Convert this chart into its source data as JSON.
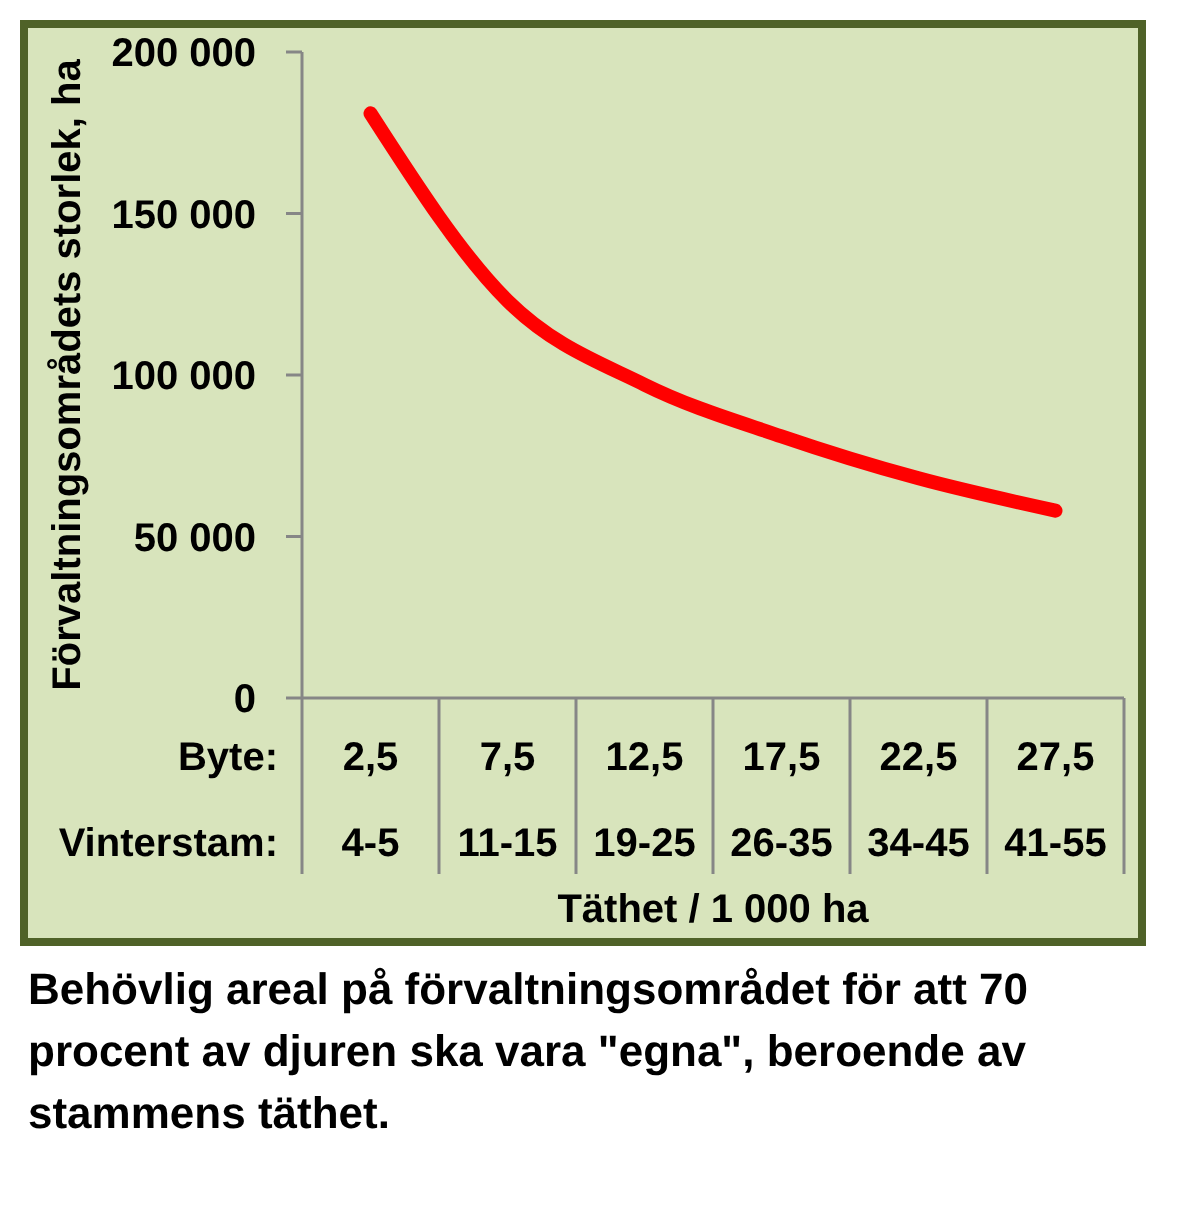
{
  "chart_data": {
    "type": "line",
    "xlabel": "Täthet / 1 000 ha",
    "ylabel": "Förvaltningsområdets storlek, ha",
    "annotations": [
      "Byte:",
      "Vinterstam:",
      "Behövlig areal på förvaltningsområdet för att 70 procent av djuren ska vara \"egna\", beroende av stammens täthet."
    ],
    "categories": [
      "2,5\n4-5",
      "7,5\n11-15",
      "12,5\n19-25",
      "17,5\n26-35",
      "22,5\n34-45",
      "27,5\n41-55"
    ],
    "series": [
      {
        "color": "#ff0000",
        "values": [
          181000,
          123000,
          97000,
          81000,
          68000,
          58000
        ]
      }
    ],
    "ylim": [
      0,
      200000
    ],
    "yticks": [
      0,
      {
        "value": 50000,
        "label": "50 000"
      },
      {
        "value": 100000,
        "label": "100 000"
      },
      {
        "value": 150000,
        "label": "150 000"
      },
      {
        "value": 200000,
        "label": "200 000"
      }
    ],
    "grid": false,
    "marker": "none",
    "line_style": "solid"
  }
}
